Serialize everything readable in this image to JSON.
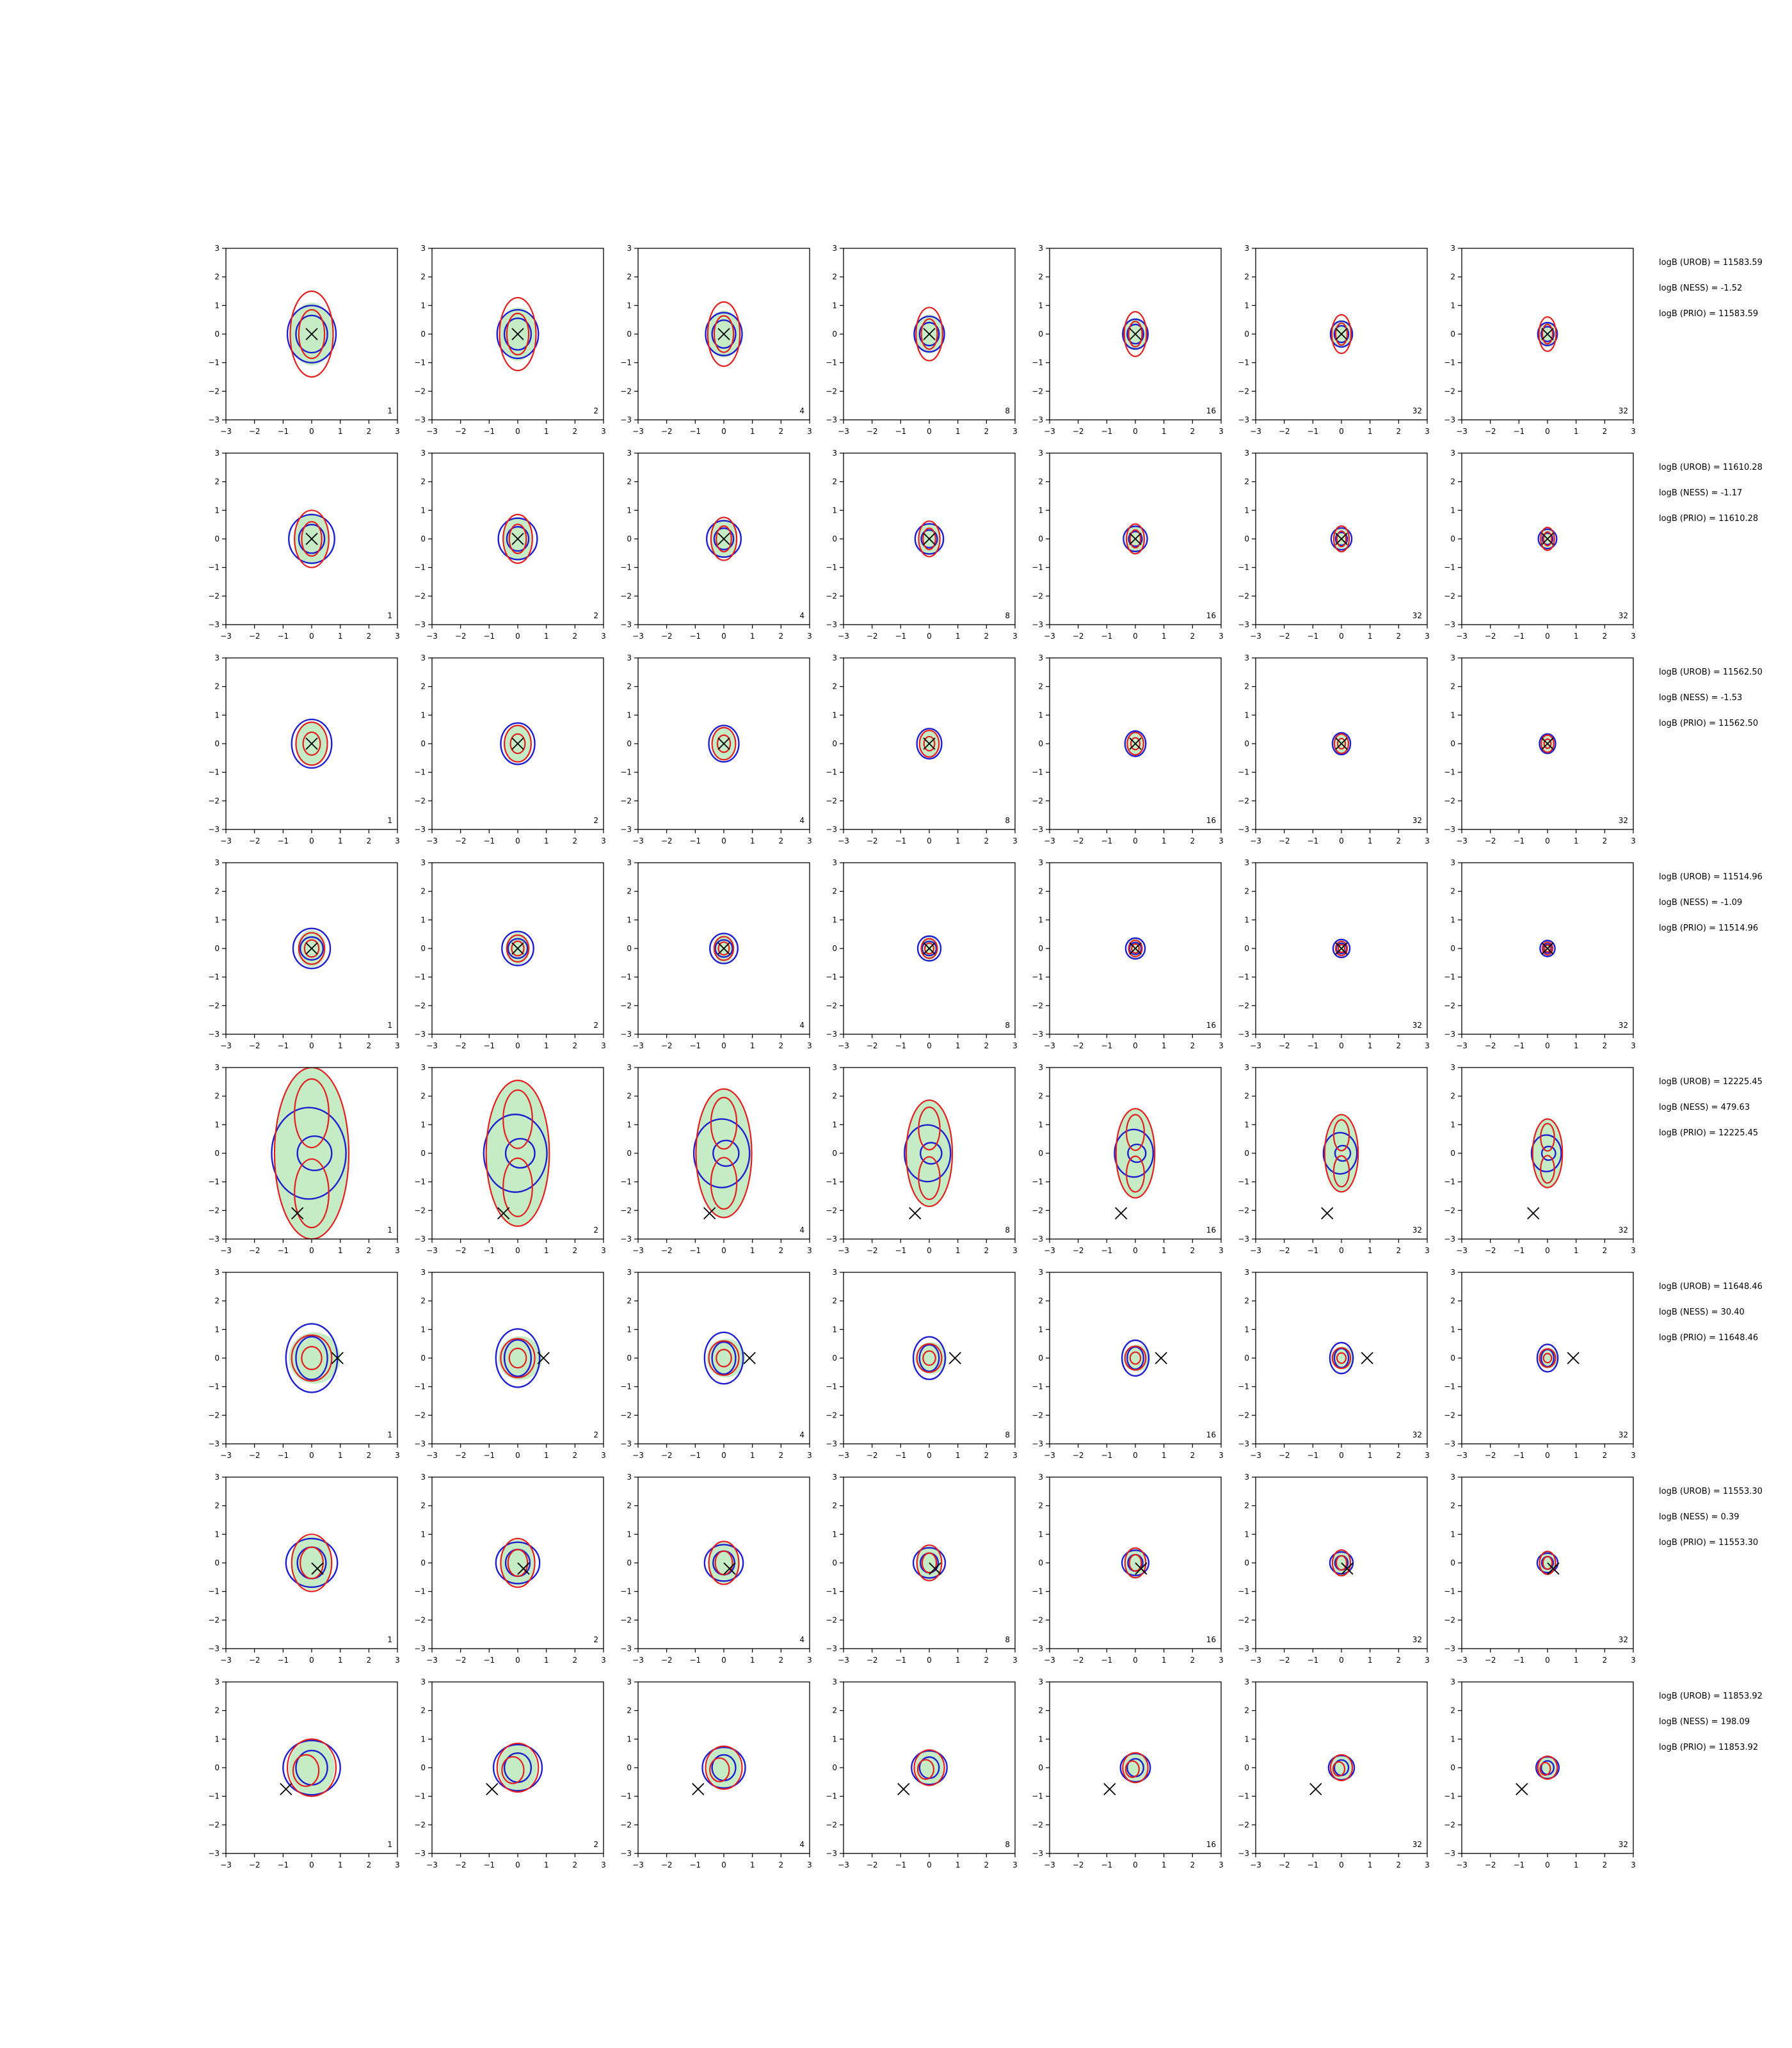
{
  "figure": {
    "rows": 8,
    "cols": 7,
    "panel_type": "contour",
    "xlim": [
      -3,
      3
    ],
    "ylim": [
      -3,
      3
    ],
    "ticks": [
      "−3",
      "−2",
      "−1",
      "0",
      "1",
      "2",
      "3"
    ],
    "colors": {
      "blue_contour": "#1f1fcc",
      "red_contour": "#e02020",
      "green_fill": "#c6ecc6",
      "gray_fill": "#cfcfcf",
      "marker": "#000000"
    },
    "panel_labels": [
      "1",
      "2",
      "4",
      "8",
      "16",
      "32",
      "32"
    ]
  },
  "chart_data": [
    {
      "type": "contour",
      "row": 1,
      "marker": [
        0,
        0
      ],
      "blue_contours": [
        [
          0,
          0,
          0.85,
          1.0
        ],
        [
          0,
          0,
          0.55,
          0.65
        ]
      ],
      "red_contours": [
        [
          0,
          0,
          0.75,
          1.5
        ],
        [
          0,
          0,
          0.45,
          0.85
        ]
      ],
      "green_fill": [
        [
          0,
          0,
          0.75,
          1.1
        ]
      ],
      "gray_fill": [],
      "annotations": [
        "logB (UROB) = 11583.59",
        "logB (NESS) = -1.52",
        "logB (PRIO) = 11583.59"
      ]
    },
    {
      "type": "contour",
      "row": 2,
      "marker": [
        0,
        0
      ],
      "blue_contours": [
        [
          0,
          0,
          0.8,
          0.85
        ],
        [
          0,
          0,
          0.45,
          0.5
        ]
      ],
      "red_contours": [
        [
          0,
          0,
          0.6,
          1.0
        ],
        [
          0,
          0,
          0.35,
          0.6
        ]
      ],
      "green_fill": [
        [
          0,
          0,
          0.6,
          0.9
        ]
      ],
      "gray_fill": [],
      "annotations": [
        "logB (UROB) = 11610.28",
        "logB (NESS) = -1.17",
        "logB (PRIO) = 11610.28"
      ]
    },
    {
      "type": "contour",
      "row": 3,
      "marker": [
        0,
        0
      ],
      "blue_contours": [
        [
          0,
          0,
          0.7,
          0.85
        ]
      ],
      "red_contours": [
        [
          0,
          0,
          0.55,
          0.75
        ],
        [
          0,
          0,
          0.3,
          0.4
        ]
      ],
      "green_fill": [
        [
          0,
          0,
          0.55,
          0.75
        ]
      ],
      "gray_fill": [],
      "annotations": [
        "logB (UROB) = 11562.50",
        "logB (NESS) = -1.53",
        "logB (PRIO) = 11562.50"
      ]
    },
    {
      "type": "contour",
      "row": 4,
      "marker": [
        0,
        0
      ],
      "blue_contours": [
        [
          0,
          0,
          0.65,
          0.7
        ],
        [
          0,
          0,
          0.4,
          0.4
        ]
      ],
      "red_contours": [
        [
          0,
          0,
          0.45,
          0.55
        ],
        [
          0,
          0,
          0.25,
          0.3
        ]
      ],
      "green_fill": [
        [
          0,
          0,
          0.5,
          0.65
        ]
      ],
      "gray_fill": [],
      "annotations": [
        "logB (UROB) = 11514.96",
        "logB (NESS) = -1.09",
        "logB (PRIO) = 11514.96"
      ]
    },
    {
      "type": "contour",
      "row": 5,
      "marker": [
        -0.5,
        -2.1
      ],
      "blue_contours": [
        [
          -0.1,
          0,
          1.3,
          1.6
        ],
        [
          0.1,
          0,
          0.6,
          0.6
        ]
      ],
      "red_contours": [
        [
          0,
          0,
          1.3,
          3.0
        ],
        [
          0,
          1.4,
          0.6,
          1.2
        ],
        [
          0,
          -1.4,
          0.6,
          1.2
        ]
      ],
      "green_fill": [
        [
          0,
          0,
          1.3,
          3.0
        ]
      ],
      "gray_fill": [],
      "annotations": [
        "logB (UROB) = 12225.45",
        "logB (NESS) = 479.63",
        "logB (PRIO) = 12225.45"
      ]
    },
    {
      "type": "contour",
      "row": 6,
      "marker": [
        0.9,
        0
      ],
      "blue_contours": [
        [
          0,
          0,
          0.9,
          1.2
        ],
        [
          0,
          0,
          0.55,
          0.75
        ]
      ],
      "red_contours": [
        [
          0,
          0,
          0.7,
          0.8
        ],
        [
          0,
          0,
          0.35,
          0.4
        ]
      ],
      "green_fill": [
        [
          0.1,
          0,
          0.9,
          0.9
        ]
      ],
      "gray_fill": [],
      "annotations": [
        "logB (UROB) = 11648.46",
        "logB (NESS) = 30.40",
        "logB (PRIO) = 11648.46"
      ]
    },
    {
      "type": "contour",
      "row": 7,
      "marker": [
        0.2,
        -0.2
      ],
      "blue_contours": [
        [
          0,
          0,
          0.9,
          0.85
        ],
        [
          0,
          0,
          0.5,
          0.55
        ]
      ],
      "red_contours": [
        [
          0,
          0,
          0.7,
          1.0
        ],
        [
          0,
          0,
          0.4,
          0.55
        ]
      ],
      "green_fill": [
        [
          0,
          0,
          0.7,
          0.95
        ]
      ],
      "gray_fill": [],
      "annotations": [
        "logB (UROB) = 11553.30",
        "logB (NESS) = 0.39",
        "logB (PRIO) = 11553.30"
      ]
    },
    {
      "type": "contour",
      "row": 8,
      "marker": [
        -0.9,
        -0.75
      ],
      "blue_contours": [
        [
          0,
          0,
          1.0,
          0.95
        ],
        [
          0,
          0,
          0.55,
          0.6
        ]
      ],
      "red_contours": [
        [
          0,
          0,
          0.85,
          1.0
        ],
        [
          -0.2,
          -0.1,
          0.45,
          0.55
        ]
      ],
      "green_fill": [
        [
          0,
          0,
          0.8,
          0.95
        ]
      ],
      "gray_fill": [],
      "annotations": [
        "logB (UROB) = 11853.92",
        "logB (NESS) = 198.09",
        "logB (PRIO) = 11853.92"
      ]
    }
  ]
}
